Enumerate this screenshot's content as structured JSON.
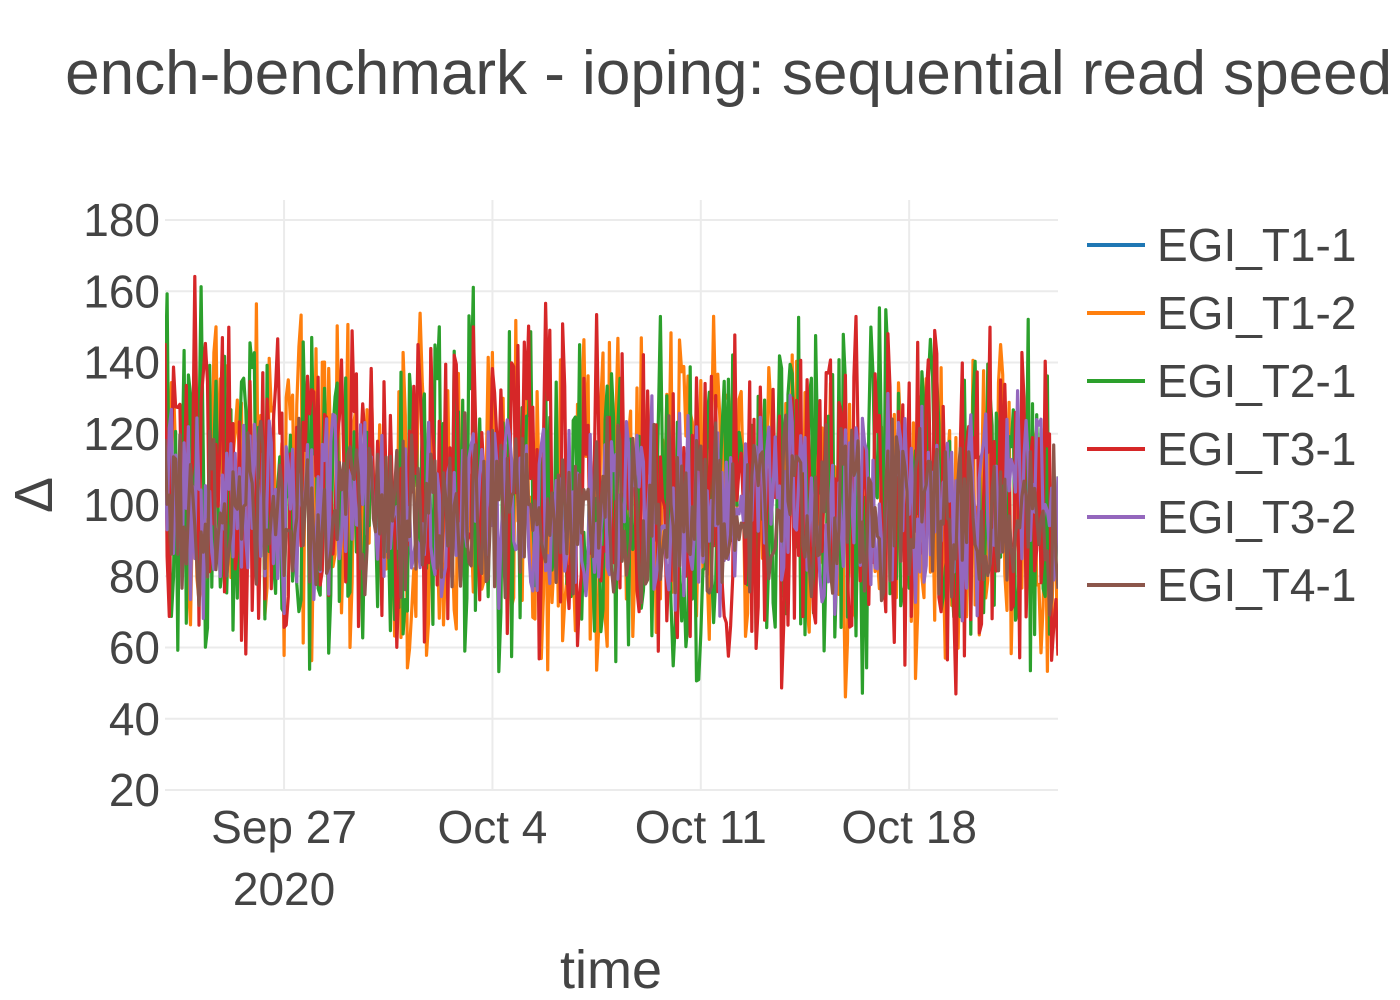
{
  "chart_data": {
    "type": "line",
    "title": "ench-benchmark - ioping: sequential read speed (",
    "xlabel": "time",
    "ylabel": "Δ",
    "x_range": [
      "2020-09-23",
      "2020-10-23"
    ],
    "ylim": [
      20,
      180
    ],
    "y_ticks": [
      20,
      40,
      60,
      80,
      100,
      120,
      140,
      160,
      180
    ],
    "x_ticks": [
      {
        "date": "2020-09-27",
        "label": "Sep 27",
        "sublabel": "2020"
      },
      {
        "date": "2020-10-04",
        "label": "Oct 4",
        "sublabel": ""
      },
      {
        "date": "2020-10-11",
        "label": "Oct 11",
        "sublabel": ""
      },
      {
        "date": "2020-10-18",
        "label": "Oct 18",
        "sublabel": ""
      }
    ],
    "grid": true,
    "legend_position": "right",
    "series": [
      {
        "name": "EGI_T1-1",
        "color": "#1f77b4",
        "center": 100,
        "amplitude": 0,
        "samples": []
      },
      {
        "name": "EGI_T1-2",
        "color": "#ff7f0e",
        "center": 108,
        "amplitude": 55
      },
      {
        "name": "EGI_T2-1",
        "color": "#2ca02c",
        "center": 108,
        "amplitude": 60
      },
      {
        "name": "EGI_T3-1",
        "color": "#d62728",
        "center": 110,
        "amplitude": 58
      },
      {
        "name": "EGI_T3-2",
        "color": "#9467bd",
        "center": 100,
        "amplitude": 35
      },
      {
        "name": "EGI_T4-1",
        "color": "#8c564b",
        "center": 98,
        "amplitude": 30
      }
    ]
  }
}
